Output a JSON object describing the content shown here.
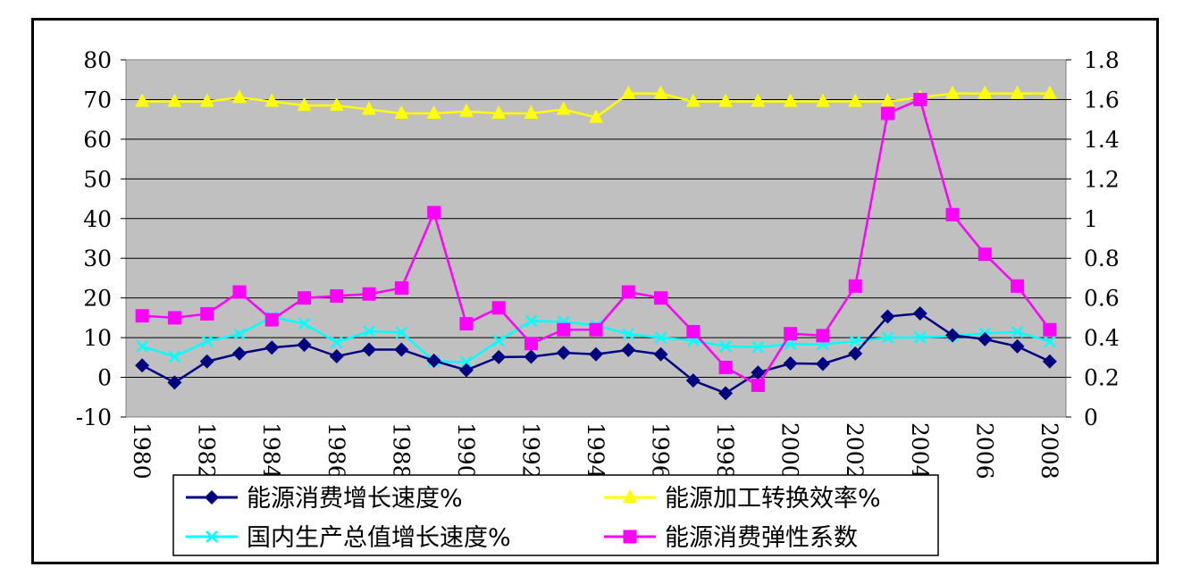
{
  "chart_data": {
    "type": "line",
    "categories": [
      "1980",
      "1981",
      "1982",
      "1983",
      "1984",
      "1985",
      "1986",
      "1987",
      "1988",
      "1989",
      "1990",
      "1991",
      "1992",
      "1993",
      "1994",
      "1995",
      "1996",
      "1997",
      "1998",
      "1999",
      "2000",
      "2001",
      "2002",
      "2003",
      "2004",
      "2005",
      "2006",
      "2007",
      "2008"
    ],
    "x_tick_labels": [
      "1980",
      "1982",
      "1984",
      "1986",
      "1988",
      "1990",
      "1992",
      "1994",
      "1996",
      "1998",
      "2000",
      "2002",
      "2004",
      "2006",
      "2008"
    ],
    "ylim_left": [
      -10,
      80
    ],
    "ylim_right": [
      0,
      1.8
    ],
    "y_left_ticks": [
      "80",
      "70",
      "60",
      "50",
      "40",
      "30",
      "20",
      "10",
      "0",
      "-10"
    ],
    "y_right_ticks": [
      "1.8",
      "1.6",
      "1.4",
      "1.2",
      "1",
      "0.8",
      "0.6",
      "0.4",
      "0.2",
      "0"
    ],
    "grid": "horizontal",
    "plot_background": "#c0c0c0",
    "series": [
      {
        "name": "能源消费增长速度%",
        "axis": "left",
        "color": "#000080",
        "marker": "diamond",
        "values": [
          3.0,
          -1.3,
          4.0,
          6.0,
          7.5,
          8.2,
          5.3,
          7.0,
          7.0,
          4.2,
          1.8,
          5.1,
          5.2,
          6.2,
          5.8,
          6.9,
          5.8,
          -0.8,
          -4.0,
          1.2,
          3.5,
          3.4,
          6.0,
          15.3,
          16.1,
          10.6,
          9.6,
          7.8,
          4.0
        ]
      },
      {
        "name": "能源加工转换效率%",
        "axis": "left",
        "color": "#ffff00",
        "marker": "triangle",
        "values": [
          69.5,
          69.5,
          69.5,
          70.5,
          69.5,
          68.5,
          68.5,
          67.5,
          66.5,
          66.5,
          67.0,
          66.5,
          66.5,
          67.5,
          65.5,
          71.5,
          71.5,
          69.5,
          69.5,
          69.5,
          69.5,
          69.5,
          69.5,
          69.5,
          70.5,
          71.5,
          71.5,
          71.5,
          71.5
        ]
      },
      {
        "name": "国内生产总值增长速度%",
        "axis": "left",
        "color": "#00ffff",
        "marker": "x",
        "values": [
          7.8,
          5.2,
          9.1,
          10.9,
          15.2,
          13.5,
          8.8,
          11.6,
          11.3,
          4.1,
          3.8,
          9.2,
          14.2,
          14.0,
          13.1,
          10.9,
          10.0,
          9.3,
          7.8,
          7.6,
          8.4,
          8.3,
          9.1,
          10.0,
          10.1,
          10.4,
          11.1,
          11.4,
          9.0
        ]
      },
      {
        "name": "能源消费弹性系数",
        "axis": "right",
        "color": "#ff00ff",
        "marker": "square",
        "values": [
          0.51,
          0.5,
          0.52,
          0.63,
          0.49,
          0.6,
          0.61,
          0.62,
          0.65,
          1.03,
          0.47,
          0.55,
          0.37,
          0.44,
          0.44,
          0.63,
          0.6,
          0.43,
          0.25,
          0.16,
          0.42,
          0.41,
          0.66,
          1.53,
          1.6,
          1.02,
          0.82,
          0.66,
          0.44
        ]
      }
    ],
    "legend_position": "bottom"
  }
}
